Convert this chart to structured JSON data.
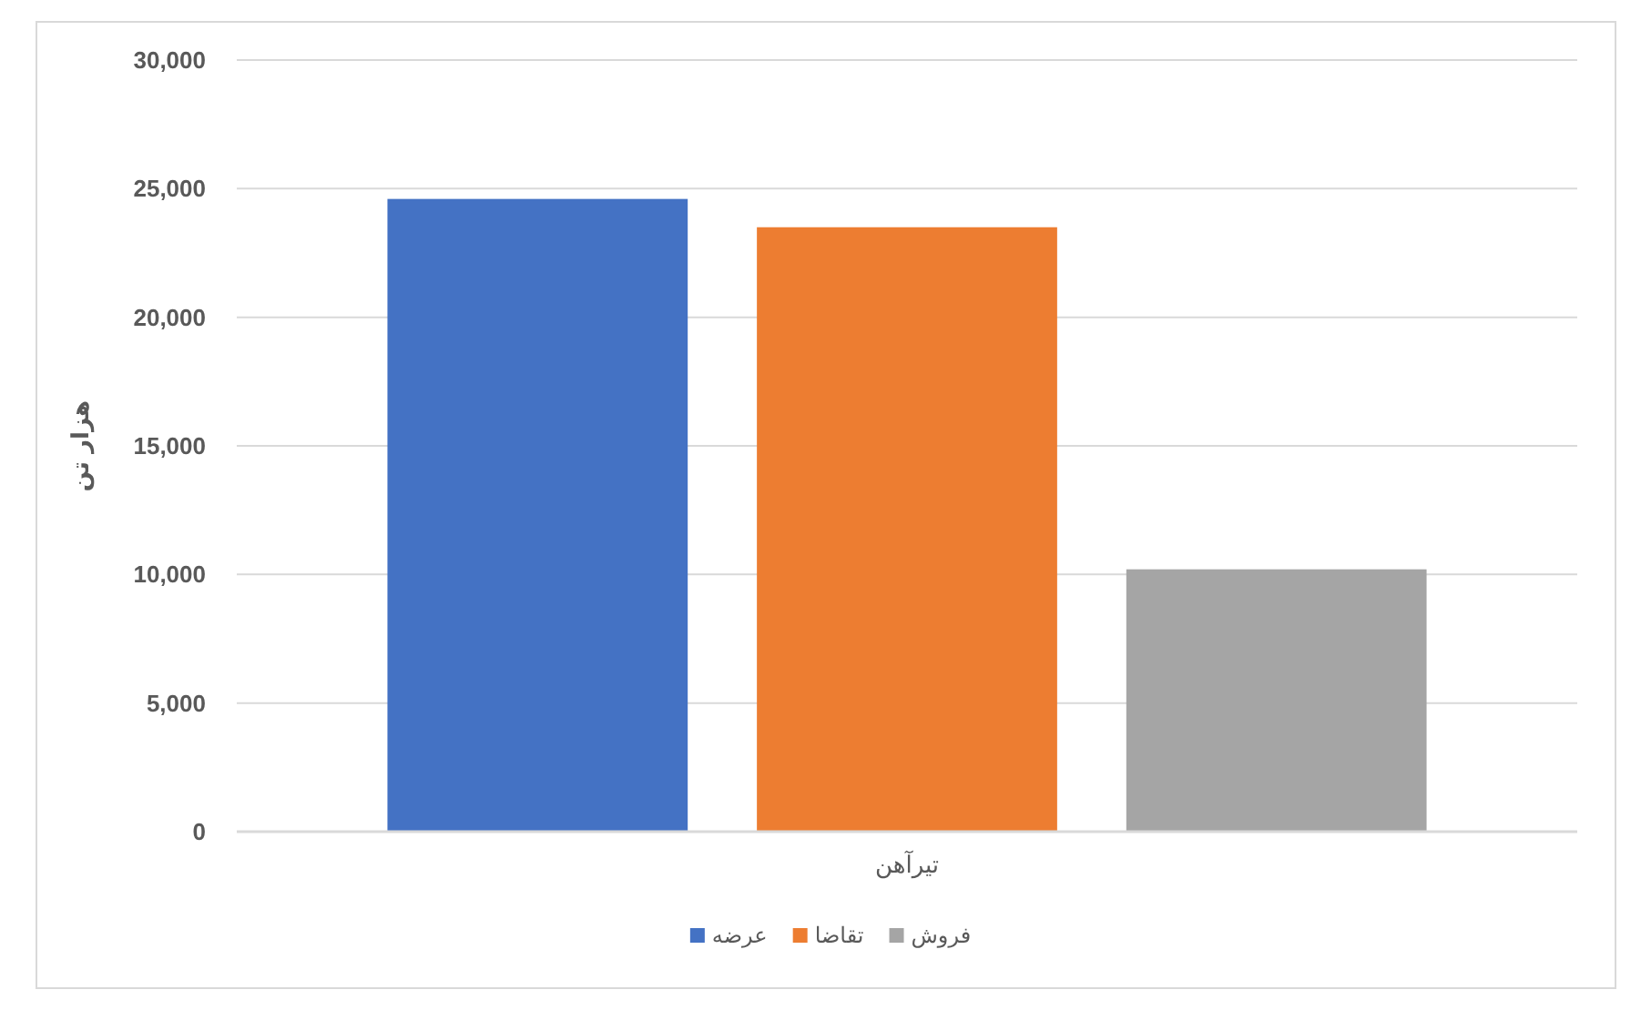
{
  "chart_data": {
    "type": "bar",
    "categories": [
      "تیرآهن"
    ],
    "series": [
      {
        "name": "عرضه",
        "color": "#4472c4",
        "values": [
          24600
        ]
      },
      {
        "name": "تقاضا",
        "color": "#ed7d31",
        "values": [
          23500
        ]
      },
      {
        "name": "فروش",
        "color": "#a5a5a5",
        "values": [
          10200
        ]
      }
    ],
    "ylabel": "هزار تن",
    "ylim": [
      0,
      30000
    ],
    "yticks": [
      0,
      {
        "value": 5000,
        "label": "5,000"
      },
      {
        "value": 10000,
        "label": "10,000"
      },
      {
        "value": 15000,
        "label": "15,000"
      },
      {
        "value": 20000,
        "label": "20,000"
      },
      {
        "value": 25000,
        "label": "25,000"
      },
      {
        "value": 30000,
        "label": "30,000"
      }
    ],
    "grid": "y",
    "legend": "bottom"
  }
}
